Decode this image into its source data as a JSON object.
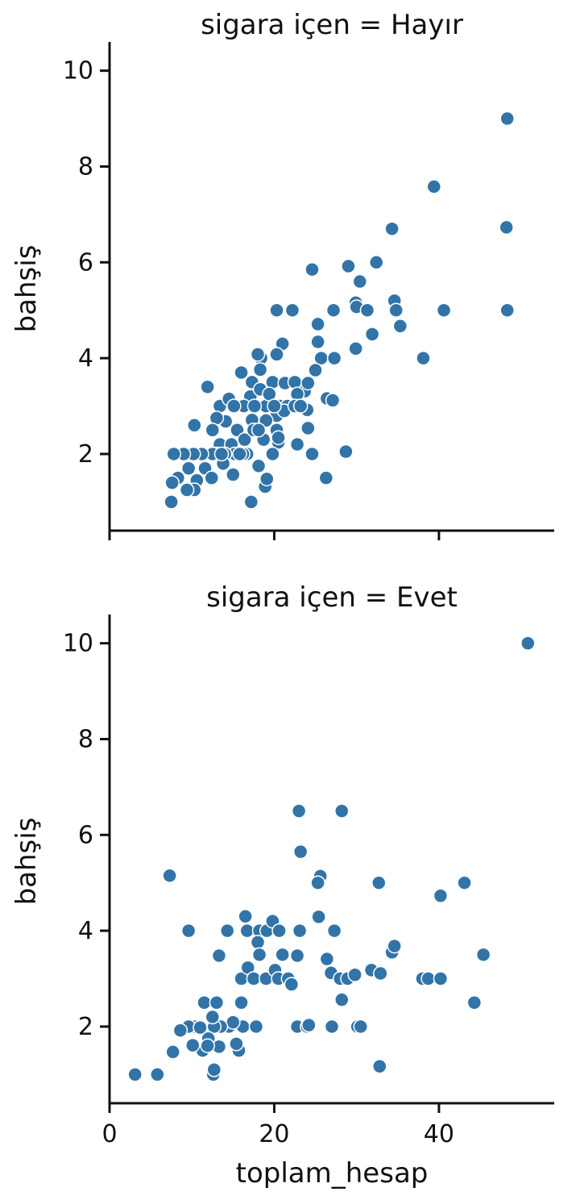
{
  "chart_data": [
    {
      "type": "scatter",
      "title": "sigara içen = Hayır",
      "xlabel": "",
      "ylabel": "bahşiş",
      "xlim": [
        0,
        54
      ],
      "ylim": [
        0.4,
        10.6
      ],
      "xticks": [],
      "yticks": [
        "2",
        "4",
        "6",
        "8",
        "10"
      ],
      "color": "#3274a8",
      "series": [
        {
          "name": "Hayır",
          "points": [
            [
              48.3,
              9.0
            ],
            [
              39.4,
              7.58
            ],
            [
              34.3,
              6.7
            ],
            [
              48.2,
              6.73
            ],
            [
              48.3,
              5.0
            ],
            [
              40.6,
              5.0
            ],
            [
              32.4,
              6.0
            ],
            [
              29.0,
              5.92
            ],
            [
              30.4,
              5.6
            ],
            [
              24.6,
              5.85
            ],
            [
              29.9,
              5.16
            ],
            [
              30.0,
              5.07
            ],
            [
              31.3,
              5.0
            ],
            [
              34.6,
              5.2
            ],
            [
              34.8,
              5.0
            ],
            [
              35.3,
              4.67
            ],
            [
              31.9,
              4.5
            ],
            [
              29.9,
              4.2
            ],
            [
              38.1,
              4.0
            ],
            [
              27.2,
              5.0
            ],
            [
              25.3,
              4.71
            ],
            [
              25.7,
              4.0
            ],
            [
              25.3,
              4.34
            ],
            [
              27.3,
              4.0
            ],
            [
              20.3,
              5.0
            ],
            [
              22.2,
              5.0
            ],
            [
              21.0,
              4.3
            ],
            [
              20.3,
              4.08
            ],
            [
              18.4,
              4.0
            ],
            [
              18.0,
              4.08
            ],
            [
              16.0,
              3.7
            ],
            [
              18.3,
              3.76
            ],
            [
              19.8,
              3.5
            ],
            [
              21.3,
              3.48
            ],
            [
              22.5,
              3.5
            ],
            [
              23.7,
              3.31
            ],
            [
              24.1,
              3.48
            ],
            [
              25.0,
              3.75
            ],
            [
              26.4,
              3.16
            ],
            [
              17.3,
              3.5
            ],
            [
              17.1,
              3.2
            ],
            [
              15.4,
              3.0
            ],
            [
              13.4,
              3.0
            ],
            [
              14.1,
              2.68
            ],
            [
              13.0,
              2.75
            ],
            [
              16.3,
              3.0
            ],
            [
              17.3,
              2.71
            ],
            [
              19.0,
              3.0
            ],
            [
              20.3,
              2.8
            ],
            [
              20.7,
              3.0
            ],
            [
              21.6,
              3.0
            ],
            [
              22.8,
              3.25
            ],
            [
              24.0,
              2.92
            ],
            [
              24.1,
              2.54
            ],
            [
              27.1,
              3.12
            ],
            [
              18.3,
              3.35
            ],
            [
              19.4,
              3.25
            ],
            [
              14.5,
              3.15
            ],
            [
              15.1,
              3.0
            ],
            [
              11.9,
              3.4
            ],
            [
              10.3,
              2.6
            ],
            [
              12.5,
              2.5
            ],
            [
              13.4,
              2.2
            ],
            [
              14.8,
              2.2
            ],
            [
              15.5,
              2.5
            ],
            [
              16.4,
              2.3
            ],
            [
              17.5,
              2.5
            ],
            [
              18.7,
              2.3
            ],
            [
              20.3,
              2.5
            ],
            [
              20.5,
              2.24
            ],
            [
              22.8,
              2.2
            ],
            [
              24.6,
              2.0
            ],
            [
              28.7,
              2.05
            ],
            [
              26.3,
              1.5
            ],
            [
              16.7,
              2.0
            ],
            [
              15.2,
              2.0
            ],
            [
              14.0,
              2.0
            ],
            [
              13.0,
              2.0
            ],
            [
              12.5,
              2.0
            ],
            [
              11.2,
              2.0
            ],
            [
              10.2,
              2.0
            ],
            [
              9.0,
              2.0
            ],
            [
              7.8,
              2.0
            ],
            [
              8.3,
              1.5
            ],
            [
              9.6,
              1.7
            ],
            [
              10.6,
              1.45
            ],
            [
              10.3,
              1.25
            ],
            [
              9.4,
              1.25
            ],
            [
              7.6,
              1.4
            ],
            [
              7.5,
              1.0
            ],
            [
              11.6,
              1.7
            ],
            [
              12.4,
              1.5
            ],
            [
              13.8,
              1.8
            ],
            [
              15.0,
              1.57
            ],
            [
              16.2,
              2.0
            ],
            [
              17.2,
              1.0
            ],
            [
              18.1,
              1.75
            ],
            [
              18.9,
              1.32
            ],
            [
              19.1,
              1.48
            ],
            [
              19.8,
              2.0
            ],
            [
              20.5,
              2.34
            ],
            [
              19.0,
              2.7
            ],
            [
              18.1,
              2.5
            ],
            [
              21.2,
              2.9
            ],
            [
              22.5,
              3.0
            ],
            [
              15.8,
              2.0
            ],
            [
              17.6,
              3.0
            ],
            [
              20.0,
              3.0
            ],
            [
              23.2,
              3.0
            ],
            [
              13.6,
              2.0
            ]
          ]
        }
      ]
    },
    {
      "type": "scatter",
      "title": "sigara içen = Evet",
      "xlabel": "toplam_hesap",
      "ylabel": "bahşiş",
      "xlim": [
        0,
        54
      ],
      "ylim": [
        0.4,
        10.6
      ],
      "xticks": [
        "0",
        "20",
        "40"
      ],
      "yticks": [
        "2",
        "4",
        "6",
        "8",
        "10"
      ],
      "color": "#3274a8",
      "series": [
        {
          "name": "Evet",
          "points": [
            [
              50.8,
              10.0
            ],
            [
              23.0,
              6.5
            ],
            [
              28.2,
              6.5
            ],
            [
              23.2,
              5.65
            ],
            [
              7.3,
              5.15
            ],
            [
              25.6,
              5.14
            ],
            [
              25.3,
              5.0
            ],
            [
              32.7,
              5.0
            ],
            [
              43.1,
              5.0
            ],
            [
              40.2,
              4.73
            ],
            [
              9.6,
              4.0
            ],
            [
              14.3,
              4.0
            ],
            [
              16.5,
              4.3
            ],
            [
              16.7,
              4.0
            ],
            [
              18.2,
              4.0
            ],
            [
              19.1,
              4.0
            ],
            [
              19.8,
              4.2
            ],
            [
              20.6,
              4.0
            ],
            [
              23.1,
              4.0
            ],
            [
              25.4,
              4.29
            ],
            [
              27.3,
              4.0
            ],
            [
              18.0,
              3.76
            ],
            [
              18.2,
              3.5
            ],
            [
              16.0,
              3.0
            ],
            [
              16.8,
              3.23
            ],
            [
              17.5,
              3.0
            ],
            [
              19.0,
              3.0
            ],
            [
              20.1,
              3.18
            ],
            [
              20.5,
              3.0
            ],
            [
              21.0,
              3.5
            ],
            [
              21.7,
              3.0
            ],
            [
              22.1,
              2.88
            ],
            [
              22.8,
              3.48
            ],
            [
              26.4,
              3.41
            ],
            [
              26.9,
              3.12
            ],
            [
              28.0,
              3.0
            ],
            [
              28.9,
              3.0
            ],
            [
              29.8,
              3.08
            ],
            [
              31.8,
              3.18
            ],
            [
              32.9,
              3.11
            ],
            [
              34.3,
              3.55
            ],
            [
              34.6,
              3.68
            ],
            [
              38.0,
              3.0
            ],
            [
              38.7,
              3.0
            ],
            [
              40.2,
              3.0
            ],
            [
              45.4,
              3.5
            ],
            [
              44.3,
              2.5
            ],
            [
              28.2,
              2.56
            ],
            [
              13.3,
              3.48
            ],
            [
              11.5,
              2.5
            ],
            [
              13.0,
              2.5
            ],
            [
              16.0,
              2.5
            ],
            [
              16.2,
              2.0
            ],
            [
              14.5,
              2.0
            ],
            [
              15.0,
              2.09
            ],
            [
              15.7,
              1.5
            ],
            [
              15.4,
              1.64
            ],
            [
              13.5,
              2.0
            ],
            [
              12.7,
              2.0
            ],
            [
              12.5,
              2.2
            ],
            [
              12.0,
              1.75
            ],
            [
              11.3,
              1.5
            ],
            [
              10.3,
              2.0
            ],
            [
              10.1,
              1.61
            ],
            [
              9.6,
              2.0
            ],
            [
              8.6,
              1.92
            ],
            [
              7.7,
              1.47
            ],
            [
              5.8,
              1.0
            ],
            [
              3.1,
              1.0
            ],
            [
              12.6,
              1.0
            ],
            [
              12.7,
              1.1
            ],
            [
              13.3,
              1.58
            ],
            [
              17.8,
              2.0
            ],
            [
              22.8,
              2.0
            ],
            [
              24.0,
              2.0
            ],
            [
              24.2,
              2.03
            ],
            [
              27.0,
              2.0
            ],
            [
              30.1,
              2.0
            ],
            [
              30.5,
              2.0
            ],
            [
              32.8,
              1.17
            ],
            [
              11.0,
              1.98
            ],
            [
              11.9,
              1.6
            ]
          ]
        }
      ]
    }
  ]
}
